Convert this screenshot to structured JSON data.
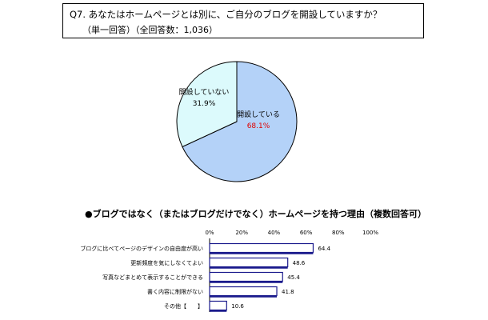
{
  "question": {
    "title": "Q7. あなたはホームページとは別に、ご自分のブログを開設していますか？",
    "sub": "（単一回答）（全回答数：1,036）"
  },
  "chart_data": [
    {
      "type": "pie",
      "labels": [
        "開設している",
        "開設していない"
      ],
      "values": [
        68.1,
        31.9
      ],
      "value_labels": [
        "68.1%",
        "31.9%"
      ],
      "colors": [
        "#b4d2f8",
        "#dcfafc"
      ],
      "value_colors": [
        "#e00000",
        "#000000"
      ]
    },
    {
      "type": "bar",
      "title": "●ブログではなく（またはブログだけでなく）ホームページを持つ理由（複数回答可）",
      "categories": [
        "ブログに比べてページのデザインの自由度が高い",
        "更新頻度を気にしなくてよい",
        "写真などまとめて表示することができる",
        "書く内容に制限がない",
        "その他【　　】"
      ],
      "values": [
        64.4,
        48.6,
        45.4,
        41.8,
        10.6
      ],
      "value_labels": [
        "64.4",
        "48.6",
        "45.4",
        "41.8",
        "10.6"
      ],
      "xticks": [
        "0%",
        "20%",
        "40%",
        "60%",
        "80%",
        "100%"
      ],
      "xlim": [
        0,
        100
      ],
      "orientation": "horizontal",
      "bar_color": "#ffffff",
      "bar_edge": "#1a1a8c"
    }
  ]
}
